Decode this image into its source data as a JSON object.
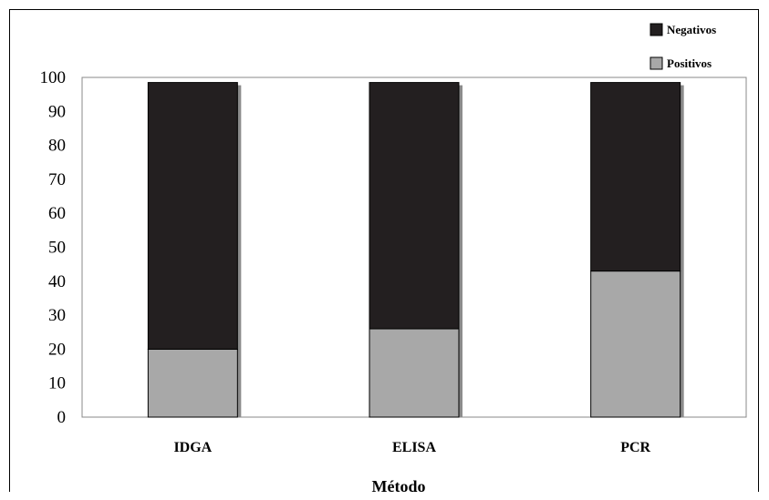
{
  "chart_data": {
    "type": "bar",
    "stacked": true,
    "categories": [
      "IDGA",
      "ELISA",
      "PCR"
    ],
    "series": [
      {
        "name": "Positivos",
        "values": [
          20,
          26,
          43
        ],
        "color": "#a8a8a8"
      },
      {
        "name": "Negativos",
        "values": [
          78.5,
          72.5,
          55.5
        ],
        "color": "#231f20"
      }
    ],
    "xlabel": "Método",
    "ylabel": "",
    "ylim": [
      0,
      100
    ],
    "yticks": [
      0,
      10,
      20,
      30,
      40,
      50,
      60,
      70,
      80,
      90,
      100
    ],
    "grid": false,
    "legend_position": "top-right"
  }
}
